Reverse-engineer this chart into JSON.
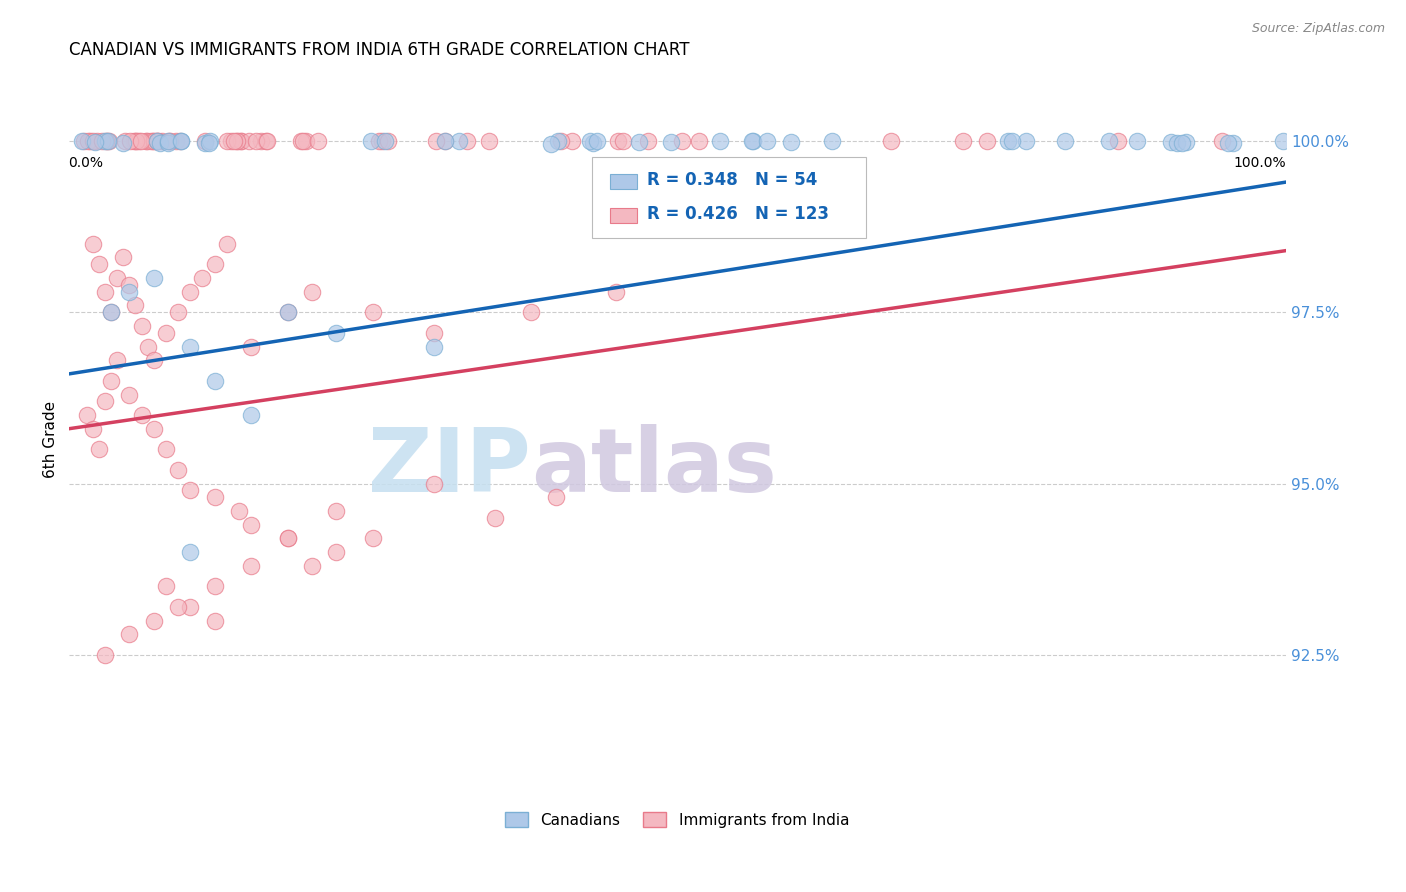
{
  "title": "CANADIAN VS IMMIGRANTS FROM INDIA 6TH GRADE CORRELATION CHART",
  "source": "Source: ZipAtlas.com",
  "ylabel": "6th Grade",
  "ytick_labels": [
    "100.0%",
    "97.5%",
    "95.0%",
    "92.5%"
  ],
  "ytick_values": [
    1.0,
    0.975,
    0.95,
    0.925
  ],
  "xlim": [
    0.0,
    1.0
  ],
  "ylim": [
    0.905,
    1.008
  ],
  "canadian_R": 0.348,
  "canadian_N": 54,
  "india_R": 0.426,
  "india_N": 123,
  "canadian_color": "#aec8e8",
  "canadian_color_edge": "#7bafd4",
  "india_color": "#f4b8c1",
  "india_color_edge": "#e87a8a",
  "trend_blue": "#1464b4",
  "trend_red": "#d44060",
  "background": "#ffffff",
  "grid_color": "#cccccc",
  "watermark_zip": "ZIP",
  "watermark_atlas": "atlas",
  "canadians_label": "Canadians",
  "india_label": "Immigrants from India"
}
